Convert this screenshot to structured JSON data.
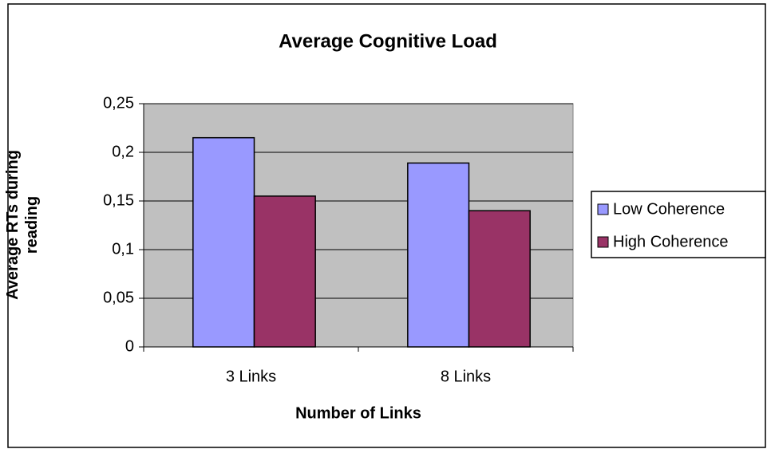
{
  "chart_data": {
    "type": "bar",
    "title": "Average Cognitive Load",
    "x_label": "Number of Links",
    "y_label": "Average RTs during reading",
    "categories": [
      "3 Links",
      "8 Links"
    ],
    "series": [
      {
        "name": "Low Coherence",
        "color": "#9999ff",
        "values": [
          0.215,
          0.189
        ]
      },
      {
        "name": "High Coherence",
        "color": "#993366",
        "values": [
          0.155,
          0.14
        ]
      }
    ],
    "ylim": [
      0,
      0.25
    ],
    "yticks": [
      0,
      {
        "value": 0.05,
        "label": "0,05"
      },
      {
        "value": 0.1,
        "label": "0,1"
      },
      {
        "value": 0.15,
        "label": "0,15"
      },
      {
        "value": 0.2,
        "label": "0,2"
      },
      {
        "value": 0.25,
        "label": "0,25"
      }
    ],
    "grid": true,
    "plot_background": "#c0c0c0",
    "legend": "right"
  }
}
